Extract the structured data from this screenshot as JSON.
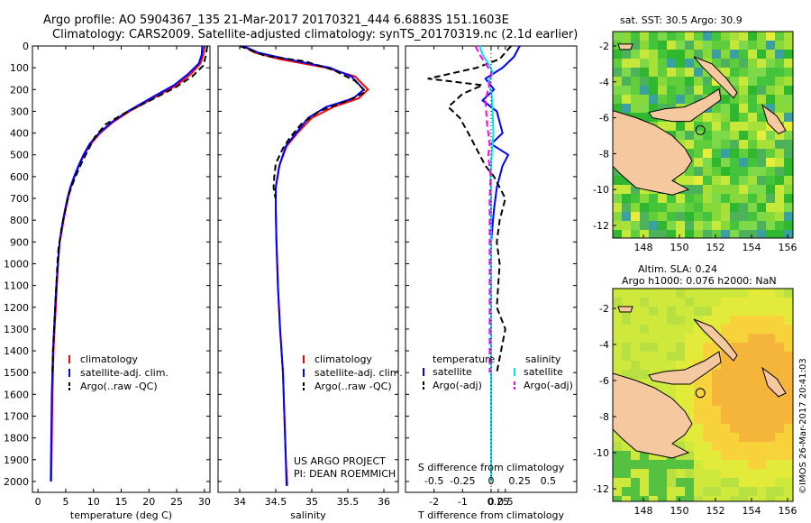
{
  "header": {
    "line1": "Argo profile: AO 5904367_135 21-Mar-2017 20170321_444 6.6883S 151.1603E",
    "line2": "Climatology: CARS2009. Satellite-adjusted climatology: synTS_20170319.nc (2.1d earlier)"
  },
  "project": {
    "line1": "US ARGO PROJECT",
    "line2": "PI: DEAN ROEMMICH"
  },
  "credit": "©IMOS 26-Mar-2017 20:41:03",
  "colors": {
    "climatology": "#ff0000",
    "satellite": "#0000ff",
    "argo": "#000000",
    "salinity_sat": "#00e5ee",
    "salinity_argo": "#ff00ff",
    "land": "#f5c8a0"
  },
  "chart_data": [
    {
      "type": "line",
      "id": "temperature",
      "xlabel": "temperature (deg C)",
      "xlim": [
        -1,
        31
      ],
      "ylim": [
        2050,
        0
      ],
      "xticks": [
        0,
        5,
        10,
        15,
        20,
        25,
        30
      ],
      "yticks": [
        0,
        100,
        200,
        300,
        400,
        500,
        600,
        700,
        800,
        900,
        1000,
        1100,
        1200,
        1300,
        1400,
        1500,
        1600,
        1700,
        1800,
        1900,
        2000
      ],
      "legend": [
        "climatology",
        "satellite-adj. clim.",
        "Argo(..raw -QC)"
      ],
      "series": [
        {
          "name": "climatology",
          "style": "climatology",
          "x": [
            30.0,
            29.8,
            29.3,
            27.5,
            25.0,
            21.5,
            16.5,
            13.5,
            11.2,
            9.5,
            8.3,
            7.4,
            6.6,
            5.9,
            5.4,
            5.0,
            4.6,
            4.3,
            3.9,
            3.6,
            3.4,
            3.2,
            3.0,
            2.8,
            2.6,
            2.5,
            2.4
          ],
          "y": [
            0,
            40,
            80,
            130,
            180,
            230,
            300,
            350,
            400,
            450,
            500,
            550,
            600,
            650,
            700,
            750,
            800,
            850,
            900,
            1000,
            1100,
            1200,
            1300,
            1400,
            1600,
            1800,
            2000
          ]
        },
        {
          "name": "satellite-adj. clim.",
          "style": "satellite",
          "x": [
            29.6,
            29.5,
            29.0,
            27.0,
            24.5,
            21.0,
            16.2,
            13.3,
            11.0,
            9.3,
            8.2,
            7.3,
            6.5,
            5.8,
            5.3,
            4.9,
            4.5,
            4.2,
            3.9,
            3.6,
            3.3,
            3.1,
            2.9,
            2.7,
            2.5,
            2.4,
            2.3
          ],
          "y": [
            0,
            40,
            80,
            130,
            180,
            230,
            300,
            350,
            400,
            450,
            500,
            550,
            600,
            650,
            700,
            750,
            800,
            850,
            900,
            1000,
            1100,
            1200,
            1300,
            1400,
            1600,
            1800,
            2000
          ]
        },
        {
          "name": "Argo(..raw -QC)",
          "style": "argo",
          "x": [
            30.5,
            30.3,
            29.8,
            27.8,
            24.8,
            21.0,
            15.5,
            12.2,
            10.2,
            9.0,
            8.0,
            7.1,
            6.3,
            5.6,
            5.1,
            4.7,
            4.3,
            4.0,
            3.7,
            3.5,
            3.3,
            3.1,
            2.9,
            2.7,
            2.6
          ],
          "y": [
            0,
            40,
            90,
            140,
            190,
            240,
            310,
            360,
            420,
            480,
            530,
            580,
            630,
            680,
            730,
            780,
            830,
            880,
            930,
            1000,
            1100,
            1200,
            1300,
            1400,
            1500
          ]
        }
      ]
    },
    {
      "type": "line",
      "id": "salinity",
      "xlabel": "salinity",
      "xlim": [
        33.7,
        36.2
      ],
      "ylim": [
        2050,
        0
      ],
      "xticks": [
        34,
        34.5,
        35,
        35.5,
        36
      ],
      "legend": [
        "climatology",
        "satellite-adj. clim.",
        "Argo(..raw -QC)"
      ],
      "series": [
        {
          "name": "climatology",
          "style": "climatology",
          "x": [
            34.05,
            34.2,
            34.55,
            35.2,
            35.6,
            35.78,
            35.65,
            35.3,
            35.0,
            34.8,
            34.65,
            34.55,
            34.5,
            34.5,
            34.51,
            34.53,
            34.56,
            34.6,
            34.62,
            34.64,
            34.66
          ],
          "y": [
            0,
            30,
            60,
            100,
            140,
            200,
            240,
            280,
            330,
            400,
            460,
            550,
            650,
            750,
            900,
            1100,
            1300,
            1500,
            1700,
            1900,
            2020
          ]
        },
        {
          "name": "satellite-adj. clim.",
          "style": "satellite",
          "x": [
            34.05,
            34.25,
            34.65,
            35.25,
            35.55,
            35.72,
            35.58,
            35.2,
            34.95,
            34.78,
            34.64,
            34.55,
            34.5,
            34.5,
            34.51,
            34.53,
            34.56,
            34.6,
            34.62,
            34.64,
            34.65
          ],
          "y": [
            0,
            30,
            60,
            100,
            140,
            200,
            240,
            280,
            330,
            400,
            460,
            550,
            650,
            750,
            900,
            1100,
            1300,
            1500,
            1700,
            1900,
            2020
          ]
        },
        {
          "name": "Argo(..raw -QC)",
          "style": "argo",
          "x": [
            34.0,
            34.35,
            34.9,
            35.3,
            35.6,
            35.75,
            35.5,
            35.1,
            34.85,
            34.7,
            34.6,
            34.5,
            34.48,
            34.47,
            34.49,
            34.5
          ],
          "y": [
            0,
            45,
            70,
            110,
            160,
            210,
            250,
            300,
            360,
            420,
            470,
            540,
            600,
            650,
            690,
            700
          ]
        }
      ]
    },
    {
      "type": "line",
      "id": "difference",
      "xlabel": "T difference from climatology",
      "x2label": "S difference from climatology",
      "xlim": [
        -3,
        3
      ],
      "ylim": [
        2050,
        0
      ],
      "xticks": [
        -2,
        -1,
        0,
        0.25,
        0.5
      ],
      "xticklabels": [
        "-2",
        "-1",
        "0",
        "0.25",
        "0.5"
      ],
      "x2ticks": [
        -0.5,
        -0.25,
        0,
        0.25,
        0.5
      ],
      "x2ticklabels": [
        "-0.5",
        "-0.25",
        "0",
        "0.25",
        "0.5"
      ],
      "legend_titles": [
        "temperature",
        "salinity"
      ],
      "legend": [
        "satellite",
        "Argo(-adj)",
        "satellite",
        "Argo(-adj)"
      ],
      "series": [
        {
          "name": "temperature satellite",
          "style": "satellite",
          "x": [
            1.0,
            0.8,
            0.4,
            -0.2,
            0.1,
            -0.3,
            0.2,
            0.4,
            0.0,
            0.6,
            0.4,
            0.2,
            0.1,
            0.0,
            0.0,
            0.0,
            0.0,
            0.0
          ],
          "y": [
            0,
            50,
            100,
            150,
            200,
            250,
            300,
            400,
            450,
            500,
            550,
            650,
            750,
            900,
            1100,
            1400,
            1700,
            2000
          ]
        },
        {
          "name": "temperature Argo(-adj)",
          "style": "argo",
          "x": [
            0.7,
            0.3,
            -0.5,
            -2.2,
            -0.3,
            -1.0,
            -1.5,
            -1.1,
            -0.8,
            -0.6,
            -0.4,
            -0.2,
            0.1,
            0.3,
            0.5,
            0.3,
            0.2,
            0.3,
            0.2,
            0.5,
            0.2
          ],
          "y": [
            0,
            60,
            100,
            150,
            180,
            220,
            280,
            330,
            400,
            450,
            500,
            550,
            600,
            650,
            700,
            800,
            900,
            1000,
            1200,
            1300,
            1500
          ]
        },
        {
          "name": "salinity satellite",
          "style": "salinity_sat",
          "x": [
            -0.4,
            -0.3,
            -0.1,
            0.05,
            -0.1,
            0.02,
            0.05,
            0.08,
            0.02,
            -0.02,
            0.0,
            0.0,
            0.0,
            0.0,
            0.0
          ],
          "y": [
            0,
            40,
            80,
            120,
            170,
            220,
            300,
            400,
            500,
            600,
            700,
            900,
            1200,
            1600,
            2000
          ]
        },
        {
          "name": "salinity Argo(-adj)",
          "style": "salinity_argo",
          "x": [
            -0.55,
            -0.4,
            -0.2,
            0.0,
            -0.05,
            -0.2,
            -0.15,
            -0.05,
            -0.1,
            -0.02,
            -0.05,
            -0.05
          ],
          "y": [
            0,
            40,
            80,
            120,
            170,
            250,
            350,
            450,
            500,
            600,
            700,
            1500
          ]
        }
      ]
    },
    {
      "type": "heatmap",
      "id": "sst-map",
      "title": "sat. SST: 30.5 Argo: 30.9",
      "xlim": [
        146.3,
        156.3
      ],
      "ylim": [
        -12.7,
        -1.2
      ],
      "xticks": [
        148,
        150,
        152,
        154,
        156
      ],
      "yticks": [
        -2,
        -4,
        -6,
        -8,
        -10,
        -12
      ],
      "marker": {
        "lon": 151.16,
        "lat": -6.69
      }
    },
    {
      "type": "heatmap",
      "id": "sla-map",
      "title1": "Altim. SLA: 0.24",
      "title2": "Argo h1000: 0.076 h2000: NaN",
      "xlim": [
        146.3,
        156.3
      ],
      "ylim": [
        -12.7,
        -0.9
      ],
      "xticks": [
        148,
        150,
        152,
        154,
        156
      ],
      "yticks": [
        -2,
        -4,
        -6,
        -8,
        -10,
        -12
      ],
      "marker": {
        "lon": 151.16,
        "lat": -6.69
      }
    }
  ]
}
